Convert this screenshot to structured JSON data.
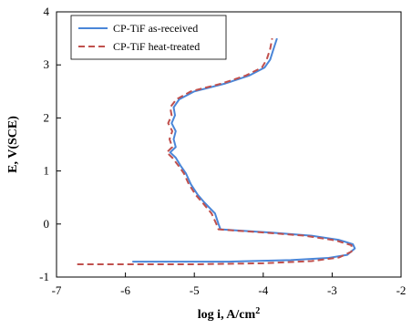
{
  "chart_data": {
    "type": "line",
    "title": "",
    "xlabel": "log i, A/cm",
    "xlabel_sup": "2",
    "ylabel": "E, V(SCE)",
    "xlim": [
      -7,
      -2
    ],
    "ylim": [
      -1,
      4
    ],
    "xticks": [
      -7,
      -6,
      -5,
      -4,
      -3,
      -2
    ],
    "yticks": [
      -1,
      0,
      1,
      2,
      3,
      4
    ],
    "grid": false,
    "legend_placement": "top-left",
    "series": [
      {
        "name": "CP-TiF as-received",
        "color": "#4a86d8",
        "dash": "solid",
        "points": [
          [
            -5.9,
            -0.71
          ],
          [
            -4.5,
            -0.71
          ],
          [
            -3.6,
            -0.68
          ],
          [
            -3.05,
            -0.64
          ],
          [
            -2.78,
            -0.58
          ],
          [
            -2.67,
            -0.46
          ],
          [
            -2.7,
            -0.38
          ],
          [
            -2.9,
            -0.3
          ],
          [
            -3.3,
            -0.22
          ],
          [
            -3.9,
            -0.16
          ],
          [
            -4.4,
            -0.12
          ],
          [
            -4.62,
            -0.1
          ],
          [
            -4.65,
            0.0
          ],
          [
            -4.7,
            0.2
          ],
          [
            -4.85,
            0.4
          ],
          [
            -4.95,
            0.55
          ],
          [
            -5.05,
            0.75
          ],
          [
            -5.12,
            0.95
          ],
          [
            -5.2,
            1.1
          ],
          [
            -5.27,
            1.25
          ],
          [
            -5.35,
            1.35
          ],
          [
            -5.27,
            1.45
          ],
          [
            -5.3,
            1.6
          ],
          [
            -5.27,
            1.75
          ],
          [
            -5.33,
            1.9
          ],
          [
            -5.28,
            2.05
          ],
          [
            -5.3,
            2.2
          ],
          [
            -5.22,
            2.35
          ],
          [
            -5.0,
            2.5
          ],
          [
            -4.55,
            2.65
          ],
          [
            -4.2,
            2.8
          ],
          [
            -3.98,
            2.95
          ],
          [
            -3.9,
            3.1
          ],
          [
            -3.85,
            3.3
          ],
          [
            -3.8,
            3.5
          ]
        ]
      },
      {
        "name": "CP-TiF heat-treated",
        "color": "#c0504d",
        "dash": "dashed",
        "points": [
          [
            -6.7,
            -0.76
          ],
          [
            -5.0,
            -0.76
          ],
          [
            -4.0,
            -0.74
          ],
          [
            -3.3,
            -0.7
          ],
          [
            -2.9,
            -0.63
          ],
          [
            -2.72,
            -0.52
          ],
          [
            -2.72,
            -0.4
          ],
          [
            -2.95,
            -0.31
          ],
          [
            -3.4,
            -0.22
          ],
          [
            -4.0,
            -0.16
          ],
          [
            -4.45,
            -0.12
          ],
          [
            -4.65,
            -0.1
          ],
          [
            -4.68,
            0.0
          ],
          [
            -4.75,
            0.2
          ],
          [
            -4.88,
            0.4
          ],
          [
            -4.98,
            0.55
          ],
          [
            -5.08,
            0.75
          ],
          [
            -5.15,
            0.95
          ],
          [
            -5.23,
            1.1
          ],
          [
            -5.32,
            1.25
          ],
          [
            -5.4,
            1.35
          ],
          [
            -5.32,
            1.45
          ],
          [
            -5.36,
            1.6
          ],
          [
            -5.32,
            1.75
          ],
          [
            -5.38,
            1.9
          ],
          [
            -5.33,
            2.05
          ],
          [
            -5.35,
            2.2
          ],
          [
            -5.26,
            2.35
          ],
          [
            -5.05,
            2.5
          ],
          [
            -4.6,
            2.65
          ],
          [
            -4.25,
            2.8
          ],
          [
            -4.02,
            2.95
          ],
          [
            -3.95,
            3.1
          ],
          [
            -3.9,
            3.3
          ],
          [
            -3.87,
            3.5
          ]
        ]
      }
    ]
  }
}
